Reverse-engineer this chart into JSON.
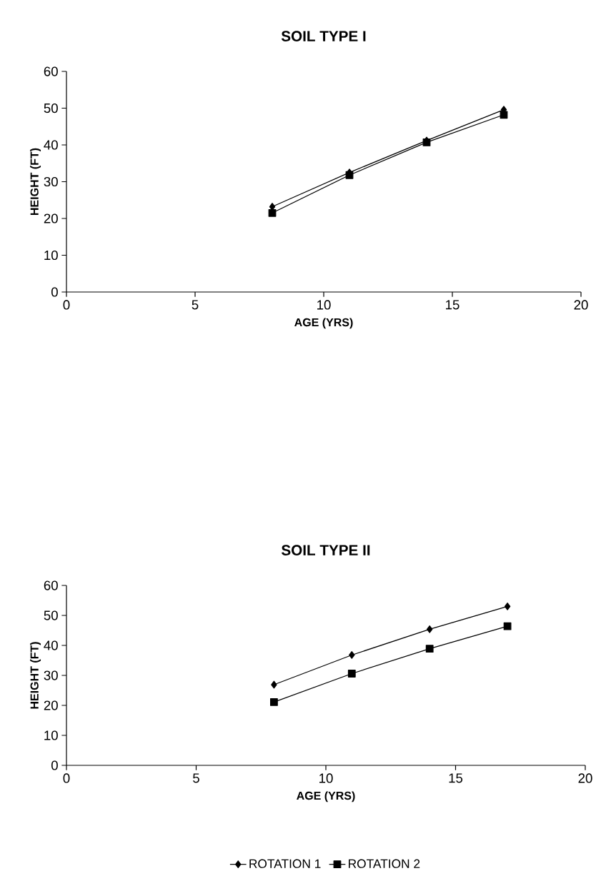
{
  "chart_data": [
    {
      "type": "line",
      "title": "SOIL TYPE I",
      "xlabel": "AGE (YRS)",
      "ylabel": "HEIGHT (FT)",
      "xlim": [
        0,
        20
      ],
      "xticks": [
        0,
        5,
        10,
        15,
        20
      ],
      "ylim": [
        0,
        60
      ],
      "yticks": [
        0,
        10,
        20,
        30,
        40,
        50,
        60
      ],
      "grid": false,
      "legend": false,
      "line_style": "solid",
      "series": [
        {
          "color": "#000000",
          "marker": "diamond",
          "x": [
            8,
            11,
            14,
            17
          ],
          "values": [
            23.2,
            32.5,
            41.2,
            49.6
          ]
        },
        {
          "color": "#000000",
          "marker": "square",
          "x": [
            8,
            11,
            14,
            17
          ],
          "values": [
            21.5,
            31.8,
            40.7,
            48.2
          ]
        }
      ]
    },
    {
      "type": "line",
      "title": "SOIL TYPE II",
      "xlabel": "AGE (YRS)",
      "ylabel": "HEIGHT (FT)",
      "xlim": [
        0,
        20
      ],
      "xticks": [
        0,
        5,
        10,
        15,
        20
      ],
      "ylim": [
        0,
        60
      ],
      "yticks": [
        0,
        10,
        20,
        30,
        40,
        50,
        60
      ],
      "grid": false,
      "legend": "bottom",
      "line_style": "solid",
      "series": [
        {
          "name": "ROTATION 1",
          "color": "#000000",
          "marker": "diamond",
          "x": [
            8,
            11,
            14,
            17
          ],
          "values": [
            26.9,
            36.8,
            45.4,
            53.0
          ]
        },
        {
          "name": "ROTATION 2",
          "color": "#000000",
          "marker": "square",
          "x": [
            8,
            11,
            14,
            17
          ],
          "values": [
            21.1,
            30.6,
            38.9,
            46.4
          ]
        }
      ]
    }
  ]
}
